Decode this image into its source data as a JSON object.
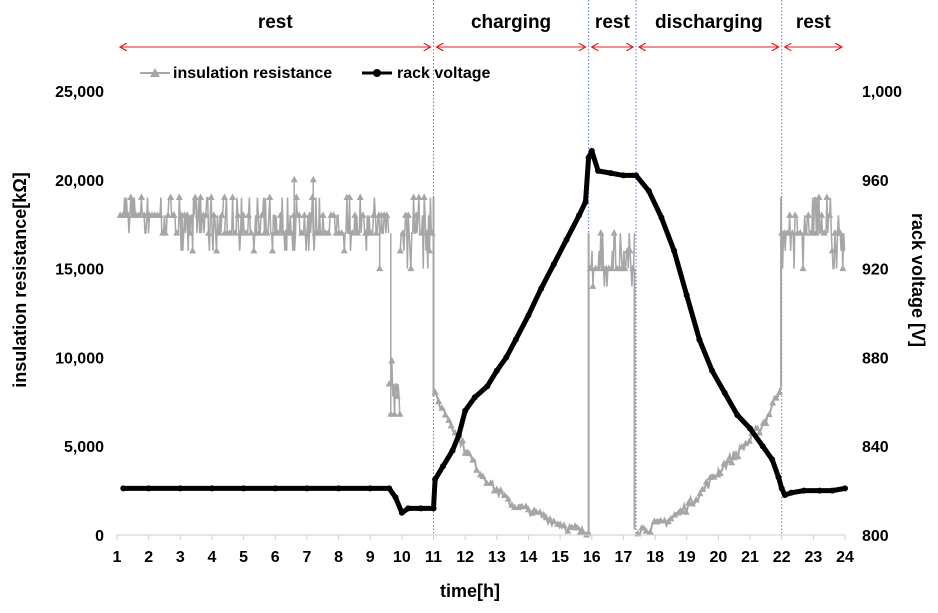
{
  "chart_data": {
    "type": "line",
    "xlabel": "time[h]",
    "ylabel_left": "insulation resistance[kΩ]",
    "ylabel_right": "rack voltage [V]",
    "xlim": [
      1,
      24
    ],
    "ylim_left": [
      0,
      25000
    ],
    "ylim_right": [
      800,
      1000
    ],
    "x_ticks": [
      "1",
      "2",
      "3",
      "4",
      "5",
      "6",
      "7",
      "8",
      "9",
      "10",
      "11",
      "12",
      "13",
      "14",
      "15",
      "16",
      "17",
      "18",
      "19",
      "20",
      "21",
      "22",
      "23",
      "24"
    ],
    "y_left_ticks": [
      "0",
      "5,000",
      "10,000",
      "15,000",
      "20,000",
      "25,000"
    ],
    "y_right_ticks": [
      "800",
      "840",
      "880",
      "920",
      "960",
      "1,000"
    ],
    "grid": false,
    "legend_position": "top-left",
    "phases": [
      {
        "label": "rest",
        "start": 1,
        "end": 11.0
      },
      {
        "label": "charging",
        "start": 11.0,
        "end": 15.9
      },
      {
        "label": "rest",
        "start": 15.9,
        "end": 17.4
      },
      {
        "label": "discharging",
        "start": 17.4,
        "end": 22.0
      },
      {
        "label": "rest",
        "start": 22.0,
        "end": 24
      }
    ],
    "series": [
      {
        "name": "insulation resistance",
        "axis": "left",
        "color": "#a6a6a6",
        "marker": "triangle",
        "band_segments": [
          {
            "x_start": 1.1,
            "x_end": 2.8,
            "low": 17000,
            "high": 19000,
            "base": 18000
          },
          {
            "x_start": 2.8,
            "x_end": 4.4,
            "low": 16000,
            "high": 19000,
            "base": 18000
          },
          {
            "x_start": 4.4,
            "x_end": 9.6,
            "low": 16000,
            "high": 19000,
            "base": 17000
          },
          {
            "x_start": 9.6,
            "x_end": 9.95,
            "low": 6800,
            "high": 10000,
            "base": 8500
          },
          {
            "x_start": 9.95,
            "x_end": 11.0,
            "low": 15000,
            "high": 19000,
            "base": 17000
          },
          {
            "x_start": 15.95,
            "x_end": 17.35,
            "low": 14000,
            "high": 17000,
            "base": 15000
          },
          {
            "x_start": 22.0,
            "x_end": 24.0,
            "low": 15000,
            "high": 19000,
            "base": 17000
          }
        ],
        "spikes": [
          {
            "x": 6.6,
            "y": 20000
          },
          {
            "x": 7.2,
            "y": 20000
          },
          {
            "x": 9.3,
            "y": 15000
          },
          {
            "x": 9.65,
            "y": 6800
          }
        ],
        "decay_charging": [
          [
            11.05,
            7800
          ],
          [
            11.5,
            6500
          ],
          [
            12.0,
            4800
          ],
          [
            12.5,
            3500
          ],
          [
            13.0,
            2500
          ],
          [
            13.5,
            1700
          ],
          [
            14.0,
            1400
          ],
          [
            14.5,
            1000
          ],
          [
            15.0,
            600
          ],
          [
            15.5,
            300
          ],
          [
            15.9,
            100
          ]
        ],
        "rise_discharging": [
          [
            17.45,
            300
          ],
          [
            18.0,
            500
          ],
          [
            18.5,
            900
          ],
          [
            19.0,
            1600
          ],
          [
            19.5,
            2500
          ],
          [
            20.0,
            3600
          ],
          [
            20.5,
            4500
          ],
          [
            21.0,
            5300
          ],
          [
            21.5,
            6500
          ],
          [
            21.95,
            8300
          ]
        ]
      },
      {
        "name": "rack voltage",
        "axis": "right",
        "color": "#000000",
        "marker": "circle",
        "points": [
          [
            1.2,
            821
          ],
          [
            2,
            821
          ],
          [
            3,
            821
          ],
          [
            4,
            821
          ],
          [
            5,
            821
          ],
          [
            6,
            821
          ],
          [
            7,
            821
          ],
          [
            8,
            821
          ],
          [
            9,
            821
          ],
          [
            9.6,
            821
          ],
          [
            9.8,
            817
          ],
          [
            10,
            810
          ],
          [
            10.2,
            812
          ],
          [
            10.6,
            812
          ],
          [
            11.0,
            812
          ],
          [
            11.05,
            825
          ],
          [
            11.3,
            831
          ],
          [
            11.6,
            838
          ],
          [
            11.8,
            845
          ],
          [
            12.0,
            856
          ],
          [
            12.3,
            862
          ],
          [
            12.7,
            867
          ],
          [
            13.0,
            874
          ],
          [
            13.3,
            880
          ],
          [
            13.6,
            888
          ],
          [
            14.0,
            899
          ],
          [
            14.4,
            911
          ],
          [
            14.8,
            922
          ],
          [
            15.2,
            933
          ],
          [
            15.6,
            944
          ],
          [
            15.8,
            950
          ],
          [
            15.9,
            970
          ],
          [
            16.0,
            973
          ],
          [
            16.2,
            964
          ],
          [
            16.6,
            963
          ],
          [
            17.0,
            962
          ],
          [
            17.4,
            962
          ],
          [
            17.8,
            955
          ],
          [
            18.2,
            943
          ],
          [
            18.6,
            928
          ],
          [
            19.0,
            908
          ],
          [
            19.4,
            888
          ],
          [
            19.8,
            874
          ],
          [
            20.2,
            864
          ],
          [
            20.6,
            854
          ],
          [
            21.0,
            848
          ],
          [
            21.4,
            840
          ],
          [
            21.7,
            834
          ],
          [
            21.9,
            826
          ],
          [
            22.0,
            821
          ],
          [
            22.1,
            818
          ],
          [
            22.3,
            819
          ],
          [
            22.7,
            820
          ],
          [
            23.2,
            820
          ],
          [
            23.6,
            820
          ],
          [
            24.0,
            821
          ]
        ]
      }
    ]
  }
}
